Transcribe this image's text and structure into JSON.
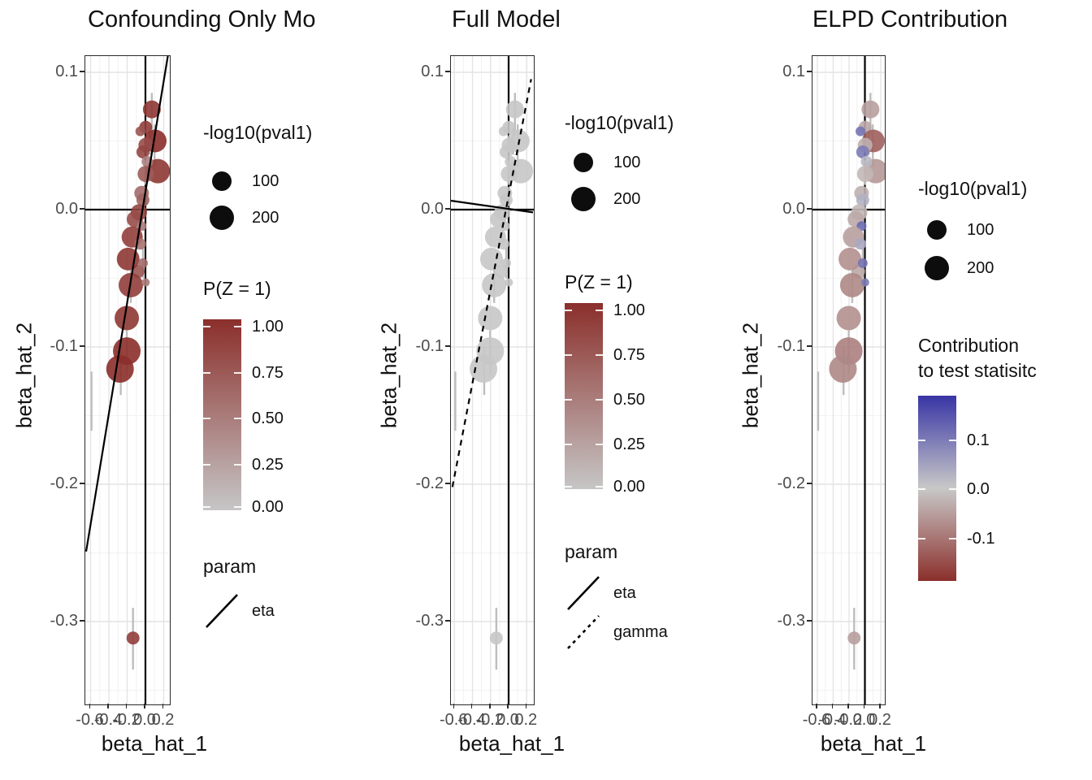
{
  "chart_data": {
    "type": "scatter",
    "figure": {
      "background": "#ffffff"
    },
    "shared": {
      "x_label": "beta_hat_1",
      "y_label": "beta_hat_2",
      "x_ticks": [
        {
          "value": -0.6,
          "label": "-0.6"
        },
        {
          "value": -0.4,
          "label": "-0.4"
        },
        {
          "value": -0.2,
          "label": "-0.2"
        },
        {
          "value": 0.0,
          "label": "0.0"
        },
        {
          "value": 0.2,
          "label": "0.2"
        }
      ],
      "y_ticks": [
        {
          "value": 0.1,
          "label": "0.1"
        },
        {
          "value": 0.0,
          "label": "0.0"
        },
        {
          "value": -0.1,
          "label": "-0.1"
        },
        {
          "value": -0.2,
          "label": "-0.2"
        },
        {
          "value": -0.3,
          "label": "-0.3"
        }
      ],
      "x_range": [
        -0.66,
        0.27
      ],
      "y_range": [
        -0.36,
        0.112
      ],
      "reference_lines": {
        "vline_x": 0.0,
        "hline_y": 0.0
      },
      "size_scale": {
        "title": "-log10(pval1)",
        "entries": [
          {
            "label": "100",
            "r": 12
          },
          {
            "label": "200",
            "r": 15
          }
        ]
      },
      "pz_scale": {
        "title": "P(Z = 1)",
        "tick_labels": [
          "1.00",
          "0.75",
          "0.50",
          "0.25",
          "0.00"
        ],
        "high_color": "#8B2F2B",
        "low_color": "#C6C6C6"
      },
      "contrib_scale": {
        "title_lines": [
          "Contribution",
          "to test statisitc"
        ],
        "tick_labels": [
          "0.1",
          "0.0",
          "-0.1"
        ],
        "high_color": "#3835A5",
        "mid_color": "#C8C8C8",
        "low_color": "#8B2F2B",
        "domain": [
          -0.19,
          0.19
        ]
      },
      "points": [
        {
          "x": 0.07,
          "y": 0.073,
          "r": 11,
          "pz": 0.95,
          "contrib": -0.05
        },
        {
          "x": 0.003,
          "y": 0.06,
          "r": 8,
          "pz": 0.9,
          "contrib": -0.04
        },
        {
          "x": -0.056,
          "y": 0.057,
          "r": 6,
          "pz": 0.75,
          "contrib": 0.11
        },
        {
          "x": 0.107,
          "y": 0.05,
          "r": 14,
          "pz": 1.0,
          "contrib": -0.13
        },
        {
          "x": 0.003,
          "y": 0.047,
          "r": 9,
          "pz": 0.8,
          "contrib": -0.03
        },
        {
          "x": -0.027,
          "y": 0.042,
          "r": 8,
          "pz": 0.85,
          "contrib": 0.1
        },
        {
          "x": 0.136,
          "y": 0.028,
          "r": 15,
          "pz": 0.95,
          "contrib": -0.06
        },
        {
          "x": 0.02,
          "y": 0.035,
          "r": 7,
          "pz": 0.45,
          "contrib": 0.02
        },
        {
          "x": 0.003,
          "y": 0.026,
          "r": 10,
          "pz": 0.7,
          "contrib": -0.02
        },
        {
          "x": -0.042,
          "y": 0.012,
          "r": 9,
          "pz": 0.6,
          "contrib": -0.03
        },
        {
          "x": -0.027,
          "y": 0.007,
          "r": 8,
          "pz": 0.65,
          "contrib": 0.03
        },
        {
          "x": -0.071,
          "y": -0.002,
          "r": 10,
          "pz": 0.85,
          "contrib": -0.02
        },
        {
          "x": -0.116,
          "y": -0.007,
          "r": 10,
          "pz": 0.8,
          "contrib": -0.04
        },
        {
          "x": -0.042,
          "y": -0.012,
          "r": 6,
          "pz": 0.5,
          "contrib": 0.12
        },
        {
          "x": -0.145,
          "y": -0.02,
          "r": 13,
          "pz": 0.9,
          "contrib": -0.05
        },
        {
          "x": -0.056,
          "y": -0.025,
          "r": 7,
          "pz": 0.55,
          "contrib": 0.04
        },
        {
          "x": -0.08,
          "y": -0.045,
          "r": 8,
          "pz": 0.75,
          "contrib": -0.04
        },
        {
          "x": -0.189,
          "y": -0.036,
          "r": 14,
          "pz": 0.95,
          "contrib": -0.07
        },
        {
          "x": -0.027,
          "y": -0.039,
          "r": 6,
          "pz": 0.6,
          "contrib": 0.11
        },
        {
          "x": -0.16,
          "y": -0.055,
          "r": 15,
          "pz": 0.9,
          "contrib": -0.08
        },
        {
          "x": 0.003,
          "y": -0.053,
          "r": 5,
          "pz": 0.5,
          "contrib": 0.1
        },
        {
          "x": -0.204,
          "y": -0.079,
          "r": 15,
          "pz": 0.95,
          "contrib": -0.07
        },
        {
          "x": -0.204,
          "y": -0.103,
          "r": 17,
          "pz": 1.0,
          "contrib": -0.09
        },
        {
          "x": -0.278,
          "y": -0.116,
          "r": 17,
          "pz": 1.0,
          "contrib": -0.08
        },
        {
          "x": -0.136,
          "y": -0.312,
          "r": 8,
          "pz": 0.9,
          "contrib": -0.05
        }
      ],
      "error_bars": [
        {
          "x": 0.07,
          "y0": 0.054,
          "y1": 0.085
        },
        {
          "x": 0.1,
          "y0": 0.031,
          "y1": 0.062
        },
        {
          "x": 0.003,
          "y0": 0.018,
          "y1": 0.036
        },
        {
          "x": 0.05,
          "y0": 0.04,
          "y1": 0.06
        },
        {
          "x": -0.027,
          "y0": -0.05,
          "y1": -0.028
        },
        {
          "x": -0.16,
          "y0": -0.068,
          "y1": -0.044
        },
        {
          "x": -0.204,
          "y0": -0.12,
          "y1": -0.088
        },
        {
          "x": -0.27,
          "y0": -0.135,
          "y1": -0.1
        },
        {
          "x": -0.59,
          "y0": -0.161,
          "y1": -0.118
        },
        {
          "x": -0.136,
          "y0": -0.335,
          "y1": -0.29
        }
      ]
    },
    "panels": [
      {
        "title": "Confounding Only Mo",
        "color_mode": "pz",
        "color_legend": "pz",
        "param_legend": {
          "title": "param",
          "entries": [
            {
              "label": "eta",
              "dash": "solid"
            }
          ]
        },
        "fit_lines": [
          {
            "param": "eta",
            "dash": "solid",
            "x0": -0.649,
            "y0": -0.249,
            "x1": 0.258,
            "y1": 0.117
          }
        ]
      },
      {
        "title": "Full Model",
        "color_mode": "flat",
        "color_legend": "pz",
        "param_legend": {
          "title": "param",
          "entries": [
            {
              "label": "eta",
              "dash": "solid"
            },
            {
              "label": "gamma",
              "dash": "dashed"
            }
          ]
        },
        "fit_lines": [
          {
            "param": "eta",
            "dash": "solid",
            "x0": -0.64,
            "y0": 0.0065,
            "x1": 0.27,
            "y1": -0.002
          },
          {
            "param": "gamma",
            "dash": "dashed",
            "x0": -0.622,
            "y0": -0.202,
            "x1": 0.249,
            "y1": 0.095
          }
        ]
      },
      {
        "title": "ELPD Contribution",
        "color_mode": "contrib",
        "color_legend": "contrib",
        "param_legend": null,
        "fit_lines": []
      }
    ]
  }
}
